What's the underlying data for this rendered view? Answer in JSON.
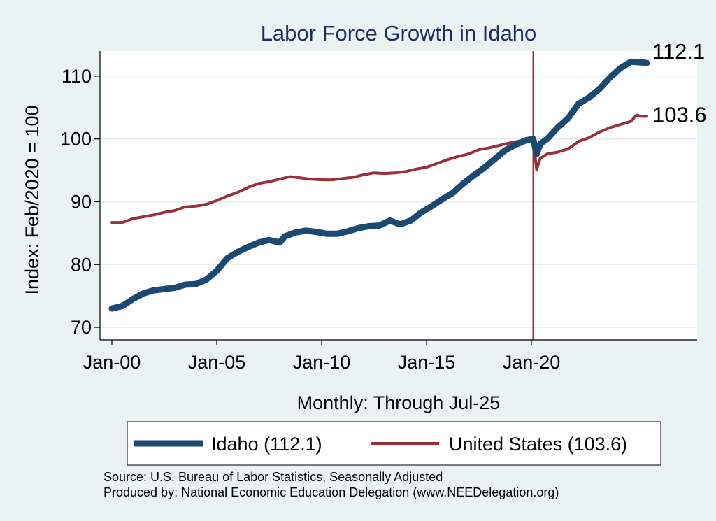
{
  "chart_data": {
    "type": "line",
    "title": "Labor Force Growth in Idaho",
    "xlabel": "Monthly: Through Jul-25",
    "ylabel": "Index: Feb/2020 = 100",
    "x_ticks": [
      "Jan-00",
      "Jan-05",
      "Jan-10",
      "Jan-15",
      "Jan-20"
    ],
    "y_ticks": [
      70,
      80,
      90,
      100,
      110
    ],
    "xlim": [
      "2000-01",
      "2025-07"
    ],
    "ylim": [
      68,
      114
    ],
    "grid": "horizontal",
    "reference_line": {
      "x": "2020-02",
      "color": "#b0243a"
    },
    "series": [
      {
        "name": "Idaho (112.1)",
        "color": "#1a4a72",
        "end_label": "112.1",
        "points": [
          [
            "2000-01",
            73.0
          ],
          [
            "2000-07",
            73.4
          ],
          [
            "2001-01",
            74.5
          ],
          [
            "2001-07",
            75.4
          ],
          [
            "2002-01",
            75.9
          ],
          [
            "2002-07",
            76.1
          ],
          [
            "2003-01",
            76.3
          ],
          [
            "2003-07",
            76.8
          ],
          [
            "2004-01",
            76.9
          ],
          [
            "2004-07",
            77.6
          ],
          [
            "2005-01",
            79.0
          ],
          [
            "2005-07",
            81.0
          ],
          [
            "2006-01",
            82.0
          ],
          [
            "2006-07",
            82.8
          ],
          [
            "2007-01",
            83.5
          ],
          [
            "2007-07",
            83.9
          ],
          [
            "2008-01",
            83.5
          ],
          [
            "2008-04",
            84.5
          ],
          [
            "2008-10",
            85.1
          ],
          [
            "2009-04",
            85.4
          ],
          [
            "2009-10",
            85.2
          ],
          [
            "2010-04",
            84.9
          ],
          [
            "2010-10",
            84.9
          ],
          [
            "2011-04",
            85.3
          ],
          [
            "2011-10",
            85.8
          ],
          [
            "2012-04",
            86.1
          ],
          [
            "2012-10",
            86.2
          ],
          [
            "2013-04",
            87.0
          ],
          [
            "2013-10",
            86.4
          ],
          [
            "2014-04",
            87.0
          ],
          [
            "2014-10",
            88.3
          ],
          [
            "2015-04",
            89.3
          ],
          [
            "2015-10",
            90.4
          ],
          [
            "2016-04",
            91.4
          ],
          [
            "2016-10",
            92.9
          ],
          [
            "2017-04",
            94.2
          ],
          [
            "2017-10",
            95.4
          ],
          [
            "2018-04",
            96.8
          ],
          [
            "2018-10",
            98.2
          ],
          [
            "2019-04",
            99.1
          ],
          [
            "2019-10",
            99.8
          ],
          [
            "2020-02",
            100.0
          ],
          [
            "2020-04",
            97.6
          ],
          [
            "2020-06",
            99.2
          ],
          [
            "2020-10",
            100.0
          ],
          [
            "2021-04",
            101.8
          ],
          [
            "2021-10",
            103.3
          ],
          [
            "2022-04",
            105.6
          ],
          [
            "2022-10",
            106.6
          ],
          [
            "2023-04",
            108.0
          ],
          [
            "2023-10",
            109.8
          ],
          [
            "2024-04",
            111.3
          ],
          [
            "2024-10",
            112.3
          ],
          [
            "2025-04",
            112.2
          ],
          [
            "2025-07",
            112.1
          ]
        ]
      },
      {
        "name": "United States (103.6)",
        "color": "#9a3039",
        "end_label": "103.6",
        "points": [
          [
            "2000-01",
            86.7
          ],
          [
            "2000-07",
            86.7
          ],
          [
            "2001-01",
            87.3
          ],
          [
            "2001-07",
            87.6
          ],
          [
            "2002-01",
            87.9
          ],
          [
            "2002-07",
            88.3
          ],
          [
            "2003-01",
            88.6
          ],
          [
            "2003-07",
            89.2
          ],
          [
            "2004-01",
            89.3
          ],
          [
            "2004-07",
            89.6
          ],
          [
            "2005-01",
            90.2
          ],
          [
            "2005-07",
            90.9
          ],
          [
            "2006-01",
            91.5
          ],
          [
            "2006-07",
            92.3
          ],
          [
            "2007-01",
            92.9
          ],
          [
            "2007-07",
            93.2
          ],
          [
            "2008-01",
            93.6
          ],
          [
            "2008-07",
            94.0
          ],
          [
            "2009-01",
            93.8
          ],
          [
            "2009-07",
            93.6
          ],
          [
            "2010-01",
            93.5
          ],
          [
            "2010-07",
            93.5
          ],
          [
            "2011-01",
            93.7
          ],
          [
            "2011-07",
            93.9
          ],
          [
            "2012-01",
            94.3
          ],
          [
            "2012-07",
            94.6
          ],
          [
            "2013-01",
            94.5
          ],
          [
            "2013-07",
            94.6
          ],
          [
            "2014-01",
            94.8
          ],
          [
            "2014-07",
            95.2
          ],
          [
            "2015-01",
            95.5
          ],
          [
            "2015-07",
            96.1
          ],
          [
            "2016-01",
            96.7
          ],
          [
            "2016-07",
            97.2
          ],
          [
            "2017-01",
            97.6
          ],
          [
            "2017-07",
            98.3
          ],
          [
            "2018-01",
            98.6
          ],
          [
            "2018-07",
            99.0
          ],
          [
            "2019-01",
            99.4
          ],
          [
            "2019-07",
            99.7
          ],
          [
            "2020-02",
            100.0
          ],
          [
            "2020-04",
            95.1
          ],
          [
            "2020-06",
            96.9
          ],
          [
            "2020-10",
            97.6
          ],
          [
            "2021-04",
            97.9
          ],
          [
            "2021-10",
            98.4
          ],
          [
            "2022-04",
            99.6
          ],
          [
            "2022-10",
            100.2
          ],
          [
            "2023-04",
            101.1
          ],
          [
            "2023-10",
            101.8
          ],
          [
            "2024-04",
            102.3
          ],
          [
            "2024-10",
            102.8
          ],
          [
            "2025-01",
            103.8
          ],
          [
            "2025-04",
            103.6
          ],
          [
            "2025-07",
            103.6
          ]
        ]
      }
    ],
    "legend": {
      "position": "bottom",
      "entries": [
        "Idaho (112.1)",
        "United States (103.6)"
      ]
    },
    "source_note": "Source: U.S. Bureau of Labor Statistics, Seasonally Adjusted",
    "producer_note": "Produced by: National Economic Education Delegation (www.NEEDelegation.org)"
  }
}
